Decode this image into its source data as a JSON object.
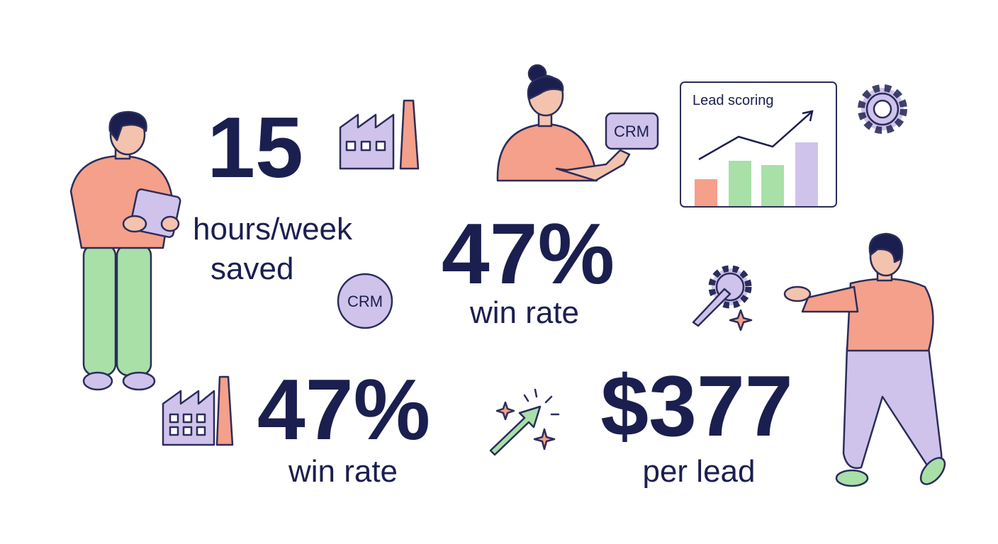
{
  "stats": [
    {
      "value": "15",
      "label_lines": [
        "hours/week",
        "saved"
      ]
    },
    {
      "value": "47%",
      "label_lines": [
        "win rate"
      ]
    },
    {
      "value": "47%",
      "label_lines": [
        "win rate"
      ]
    },
    {
      "value": "$377",
      "label_lines": [
        "per lead"
      ]
    }
  ],
  "badges": [
    "CRM",
    "CRM"
  ],
  "card": {
    "title": "Lead scoring"
  }
}
